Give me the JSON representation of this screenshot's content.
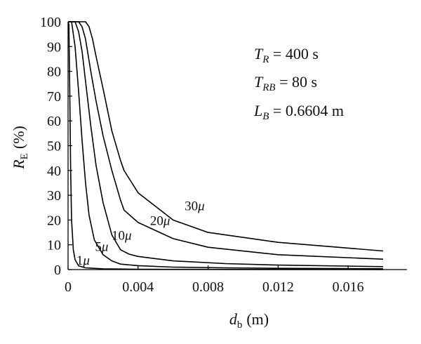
{
  "chart_data": {
    "type": "line",
    "title": "",
    "xlabel": {
      "symbol": "d",
      "sub": "b",
      "unit": "(m)"
    },
    "ylabel": {
      "symbol": "R",
      "sub": "E",
      "unit": "(%)"
    },
    "xlim": [
      0,
      0.018
    ],
    "ylim": [
      0,
      100
    ],
    "x_ticks": [
      0,
      0.004,
      0.008,
      0.012,
      0.016
    ],
    "x_tick_labels": [
      "0",
      "0.004",
      "0.008",
      "0.012",
      "0.016"
    ],
    "y_ticks": [
      0,
      10,
      20,
      30,
      40,
      50,
      60,
      70,
      80,
      90,
      100
    ],
    "y_tick_labels": [
      "0",
      "10",
      "20",
      "30",
      "40",
      "50",
      "60",
      "70",
      "80",
      "90",
      "100"
    ],
    "grid": false,
    "annotations": [
      {
        "symbol": "T",
        "sub": "R",
        "text": " = 400 s"
      },
      {
        "symbol": "T",
        "sub": "RB",
        "text": " = 80 s"
      },
      {
        "symbol": "L",
        "sub": "B",
        "text": " = 0.6604 m"
      }
    ],
    "series": [
      {
        "name": "1μ",
        "label_num": "1",
        "label_unit": "μ",
        "x": [
          0,
          5e-05,
          0.0001,
          0.00015,
          0.0002,
          0.0003,
          0.0004,
          0.0006,
          0.001,
          0.002,
          0.004,
          0.008,
          0.012,
          0.018
        ],
        "y": [
          100,
          99,
          70,
          40,
          20,
          8,
          4,
          1.5,
          0.7,
          0.3,
          0.15,
          0.08,
          0.05,
          0.03
        ]
      },
      {
        "name": "5μ",
        "label_num": "5",
        "label_unit": "μ",
        "x": [
          0,
          0.0002,
          0.0004,
          0.0006,
          0.0008,
          0.001,
          0.0012,
          0.0015,
          0.002,
          0.0025,
          0.003,
          0.004,
          0.006,
          0.009,
          0.012,
          0.018
        ],
        "y": [
          100,
          100,
          90,
          72,
          52,
          35,
          22,
          12,
          6,
          3.5,
          2.2,
          1.6,
          1.0,
          0.7,
          0.5,
          0.35
        ]
      },
      {
        "name": "10μ",
        "label_num": "10",
        "label_unit": "μ",
        "x": [
          0,
          0.0004,
          0.0006,
          0.0008,
          0.001,
          0.0013,
          0.0016,
          0.002,
          0.0025,
          0.003,
          0.0035,
          0.004,
          0.006,
          0.009,
          0.012,
          0.018
        ],
        "y": [
          100,
          100,
          96,
          88,
          76,
          58,
          42,
          27,
          14,
          8,
          6.2,
          5.3,
          3.5,
          2.4,
          1.8,
          1.2
        ]
      },
      {
        "name": "20μ",
        "label_num": "20",
        "label_unit": "μ",
        "x": [
          0,
          0.0006,
          0.0008,
          0.001,
          0.0013,
          0.0016,
          0.002,
          0.0025,
          0.003,
          0.0032,
          0.004,
          0.006,
          0.008,
          0.012,
          0.018
        ],
        "y": [
          100,
          100,
          98,
          93,
          80,
          68,
          54,
          40,
          28,
          24,
          19,
          12.5,
          9,
          6,
          4.2
        ]
      },
      {
        "name": "30μ",
        "label_num": "30",
        "label_unit": "μ",
        "x": [
          0,
          0.001,
          0.0012,
          0.0014,
          0.0016,
          0.002,
          0.0025,
          0.003,
          0.0032,
          0.004,
          0.006,
          0.008,
          0.012,
          0.018
        ],
        "y": [
          100,
          100,
          98,
          93,
          86,
          73,
          56,
          44,
          40,
          31,
          20,
          15,
          11,
          7.5
        ]
      }
    ]
  }
}
